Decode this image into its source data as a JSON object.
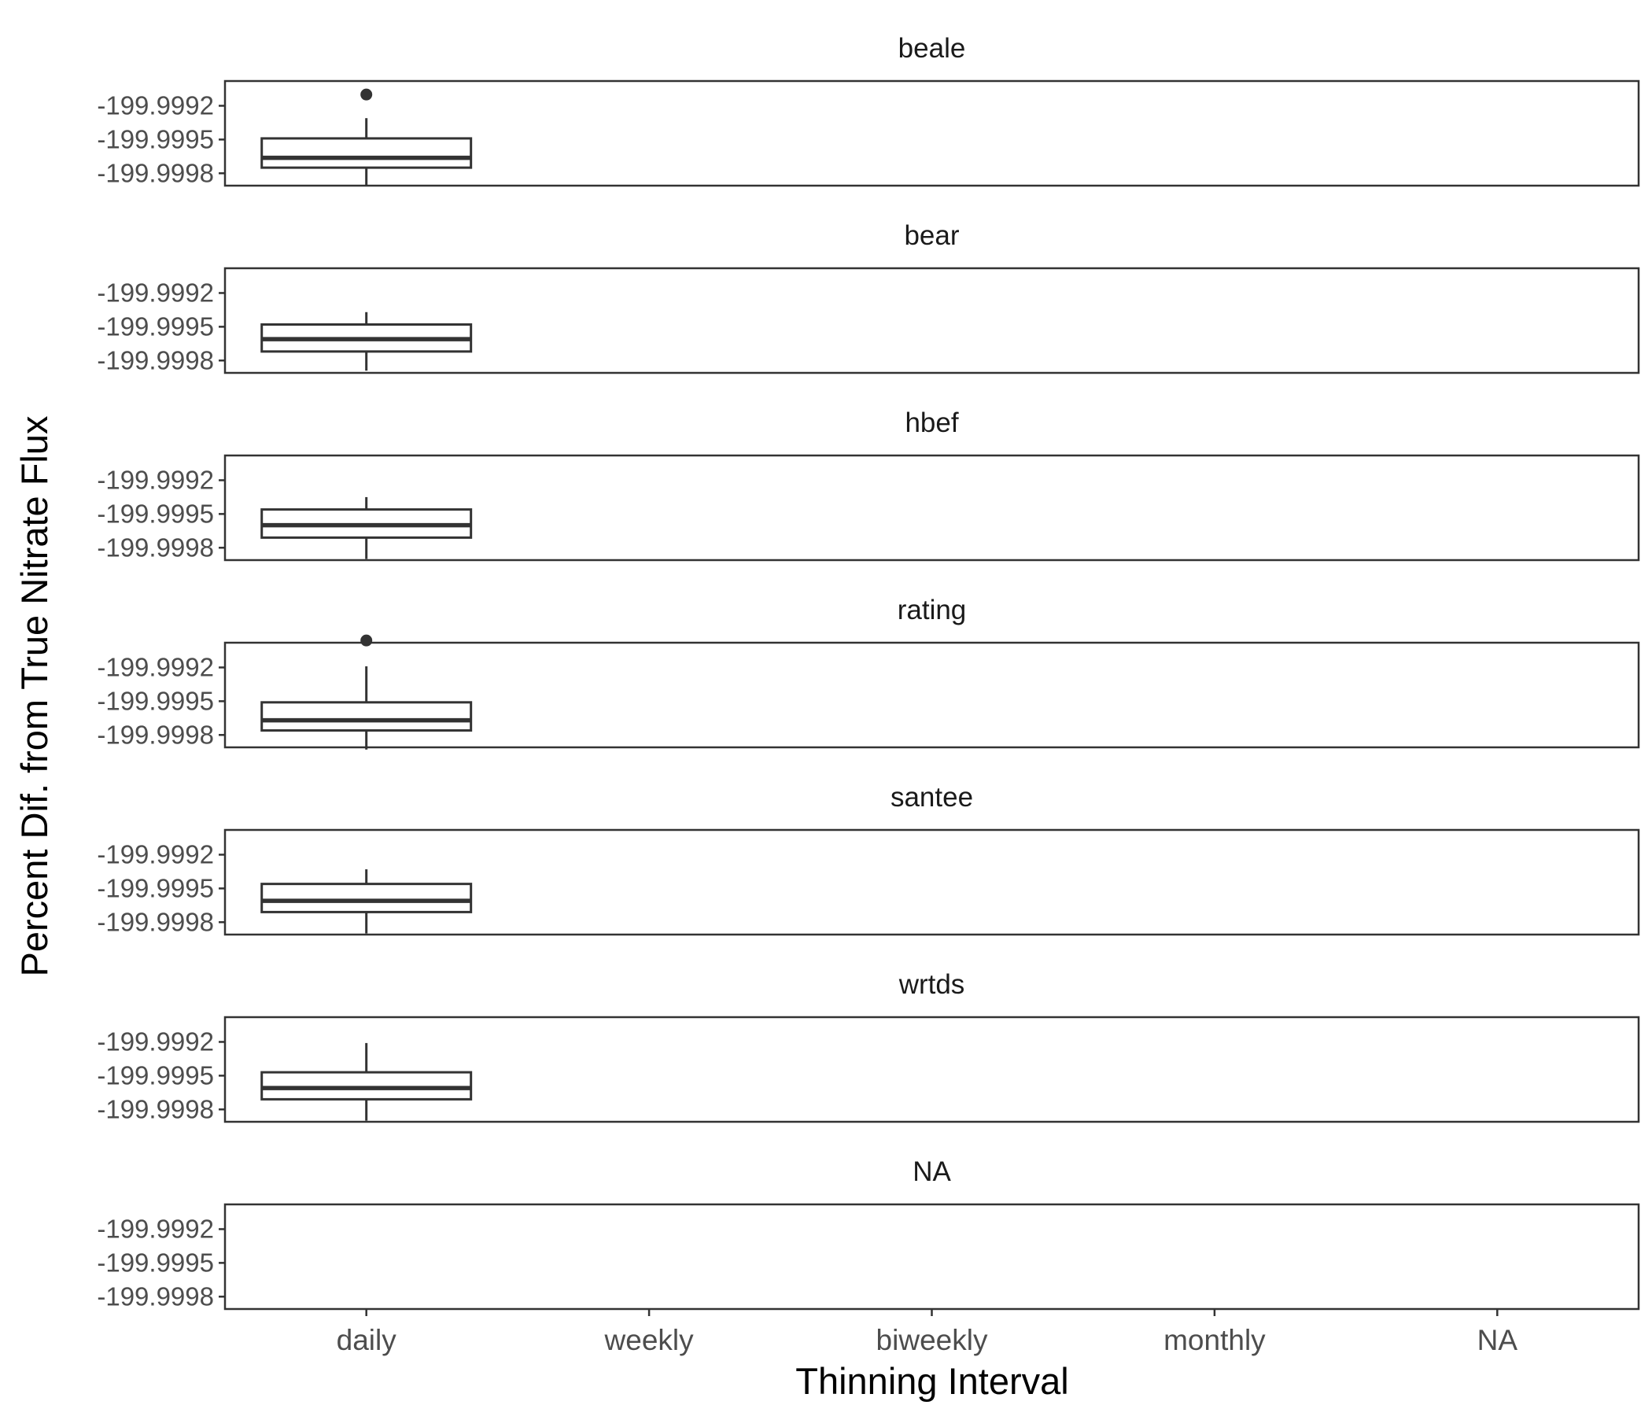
{
  "chart_data": {
    "type": "box",
    "xlabel": "Thinning Interval",
    "ylabel": "Percent Dif. from True Nitrate Flux",
    "categories": [
      "daily",
      "weekly",
      "biweekly",
      "monthly",
      "NA"
    ],
    "y_ticks": [
      -199.9992,
      -199.9995,
      -199.9998
    ],
    "y_tick_labels": [
      "-199.9992",
      "-199.9995",
      "-199.9998"
    ],
    "ylim": [
      -199.99991,
      -199.99898
    ],
    "grid": false,
    "facets": [
      {
        "name": "beale",
        "boxes": [
          {
            "category": "daily",
            "whisker_low": -199.99991,
            "q1": -199.99975,
            "median": -199.999663,
            "q3": -199.99949,
            "whisker_high": -199.99931,
            "outliers": [
              -199.9991
            ]
          }
        ]
      },
      {
        "name": "bear",
        "boxes": [
          {
            "category": "daily",
            "whisker_low": -199.99989,
            "q1": -199.99972,
            "median": -199.99961,
            "q3": -199.99948,
            "whisker_high": -199.99937,
            "outliers": []
          }
        ]
      },
      {
        "name": "hbef",
        "boxes": [
          {
            "category": "daily",
            "whisker_low": -199.9999,
            "q1": -199.99971,
            "median": -199.9996,
            "q3": -199.99946,
            "whisker_high": -199.99935,
            "outliers": []
          }
        ]
      },
      {
        "name": "rating",
        "boxes": [
          {
            "category": "daily",
            "whisker_low": -199.99993,
            "q1": -199.99976,
            "median": -199.99967,
            "q3": -199.99951,
            "whisker_high": -199.99919,
            "outliers": [
              -199.99896
            ]
          }
        ]
      },
      {
        "name": "santee",
        "boxes": [
          {
            "category": "daily",
            "whisker_low": -199.9999,
            "q1": -199.99971,
            "median": -199.99961,
            "q3": -199.99946,
            "whisker_high": -199.99933,
            "outliers": []
          }
        ]
      },
      {
        "name": "wrtds",
        "boxes": [
          {
            "category": "daily",
            "whisker_low": -199.9999,
            "q1": -199.99971,
            "median": -199.99961,
            "q3": -199.99947,
            "whisker_high": -199.99921,
            "outliers": []
          }
        ]
      },
      {
        "name": "NA",
        "boxes": []
      }
    ]
  }
}
